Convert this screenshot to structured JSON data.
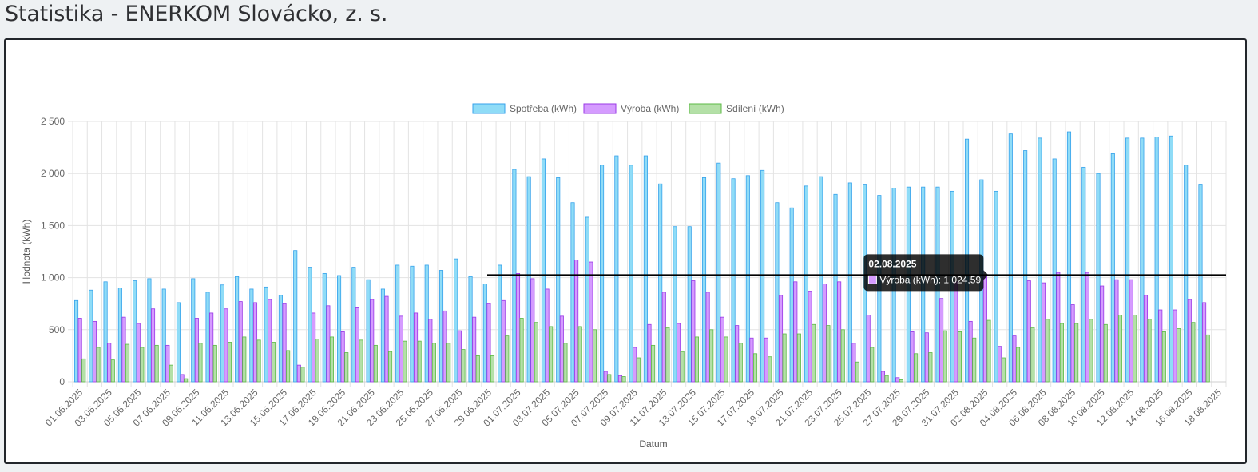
{
  "page": {
    "title": "Statistika - ENERKOM Slovácko, z. s."
  },
  "chart_data": {
    "type": "bar",
    "xlabel": "Datum",
    "ylabel": "Hodnota (kWh)",
    "ylim": [
      0,
      2500
    ],
    "yticks": [
      {
        "value": 0,
        "label": "0"
      },
      {
        "value": 500,
        "label": "500"
      },
      {
        "value": 1000,
        "label": "1 000"
      },
      {
        "value": 1500,
        "label": "1 500"
      },
      {
        "value": 2000,
        "label": "2 000"
      },
      {
        "value": 2500,
        "label": "2 500"
      }
    ],
    "grid": true,
    "legend_position": "top",
    "categories": [
      "01.06.2025",
      "02.06.2025",
      "03.06.2025",
      "04.06.2025",
      "05.06.2025",
      "06.06.2025",
      "07.06.2025",
      "08.06.2025",
      "09.06.2025",
      "10.06.2025",
      "11.06.2025",
      "12.06.2025",
      "13.06.2025",
      "14.06.2025",
      "15.06.2025",
      "16.06.2025",
      "17.06.2025",
      "18.06.2025",
      "19.06.2025",
      "20.06.2025",
      "21.06.2025",
      "22.06.2025",
      "23.06.2025",
      "24.06.2025",
      "25.06.2025",
      "26.06.2025",
      "27.06.2025",
      "28.06.2025",
      "29.06.2025",
      "30.06.2025",
      "01.07.2025",
      "02.07.2025",
      "03.07.2025",
      "04.07.2025",
      "05.07.2025",
      "06.07.2025",
      "07.07.2025",
      "08.07.2025",
      "09.07.2025",
      "10.07.2025",
      "11.07.2025",
      "12.07.2025",
      "13.07.2025",
      "14.07.2025",
      "15.07.2025",
      "16.07.2025",
      "17.07.2025",
      "18.07.2025",
      "19.07.2025",
      "20.07.2025",
      "21.07.2025",
      "22.07.2025",
      "23.07.2025",
      "24.07.2025",
      "25.07.2025",
      "26.07.2025",
      "27.07.2025",
      "28.07.2025",
      "29.07.2025",
      "30.07.2025",
      "31.07.2025",
      "01.08.2025",
      "02.08.2025",
      "03.08.2025",
      "04.08.2025",
      "05.08.2025",
      "06.08.2025",
      "07.08.2025",
      "08.08.2025",
      "09.08.2025",
      "10.08.2025",
      "11.08.2025",
      "12.08.2025",
      "13.08.2025",
      "14.08.2025",
      "15.08.2025",
      "16.08.2025",
      "17.08.2025",
      "18.08.2025"
    ],
    "tick_labels": [
      "01.06.2025",
      "03.06.2025",
      "05.06.2025",
      "07.06.2025",
      "09.06.2025",
      "11.06.2025",
      "13.06.2025",
      "15.06.2025",
      "17.06.2025",
      "19.06.2025",
      "21.06.2025",
      "23.06.2025",
      "25.06.2025",
      "27.06.2025",
      "29.06.2025",
      "01.07.2025",
      "03.07.2025",
      "05.07.2025",
      "07.07.2025",
      "09.07.2025",
      "11.07.2025",
      "13.07.2025",
      "15.07.2025",
      "17.07.2025",
      "19.07.2025",
      "21.07.2025",
      "23.07.2025",
      "25.07.2025",
      "27.07.2025",
      "29.07.2025",
      "31.07.2025",
      "02.08.2025",
      "04.08.2025",
      "06.08.2025",
      "08.08.2025",
      "10.08.2025",
      "12.08.2025",
      "14.08.2025",
      "16.08.2025",
      "18.08.2025"
    ],
    "series": [
      {
        "name": "Spotřeba (kWh)",
        "color": "#8fdcf7",
        "border": "#36a2eb",
        "values": [
          780,
          880,
          960,
          900,
          970,
          990,
          890,
          760,
          990,
          860,
          930,
          1010,
          890,
          910,
          830,
          1260,
          1100,
          1040,
          1020,
          1100,
          980,
          890,
          1120,
          1110,
          1120,
          1070,
          1180,
          1010,
          940,
          1120,
          2040,
          1970,
          2140,
          1960,
          1720,
          1580,
          2080,
          2170,
          2080,
          2170,
          1900,
          1490,
          1490,
          1960,
          2100,
          1950,
          1980,
          2030,
          1720,
          1670,
          1880,
          1970,
          1800,
          1910,
          1890,
          1790,
          1860,
          1870,
          1870,
          1870,
          1830,
          2330,
          1940,
          1830,
          2380,
          2220,
          2340,
          2140,
          2400,
          2060,
          2000,
          2190,
          2340,
          2340,
          2350,
          2360,
          2080,
          1890,
          null
        ]
      },
      {
        "name": "Výroba (kWh)",
        "color": "#d59bff",
        "border": "#9a38e6",
        "values": [
          610,
          580,
          370,
          620,
          560,
          700,
          350,
          70,
          610,
          660,
          700,
          770,
          760,
          790,
          750,
          160,
          660,
          730,
          480,
          710,
          790,
          820,
          630,
          660,
          600,
          680,
          490,
          620,
          750,
          780,
          1040,
          990,
          890,
          630,
          1170,
          1150,
          100,
          60,
          330,
          550,
          860,
          560,
          970,
          860,
          620,
          540,
          420,
          420,
          830,
          960,
          870,
          940,
          960,
          370,
          640,
          100,
          40,
          480,
          470,
          800,
          960,
          580,
          1025,
          340,
          440,
          970,
          950,
          1050,
          740,
          1050,
          920,
          980,
          980,
          830,
          690,
          690,
          790,
          760,
          null
        ]
      },
      {
        "name": "Sdílení (kWh)",
        "color": "#b4e0a7",
        "border": "#5cba45",
        "values": [
          220,
          330,
          210,
          360,
          330,
          350,
          160,
          30,
          370,
          350,
          380,
          430,
          400,
          380,
          300,
          140,
          410,
          430,
          280,
          400,
          350,
          290,
          390,
          390,
          370,
          370,
          310,
          250,
          250,
          440,
          610,
          570,
          530,
          370,
          530,
          500,
          70,
          50,
          230,
          350,
          520,
          290,
          430,
          500,
          430,
          370,
          270,
          240,
          460,
          460,
          550,
          540,
          500,
          190,
          330,
          60,
          20,
          270,
          280,
          490,
          480,
          420,
          590,
          230,
          330,
          520,
          600,
          560,
          560,
          600,
          550,
          640,
          640,
          600,
          480,
          510,
          570,
          450,
          null
        ]
      }
    ],
    "tooltip": {
      "title": "02.08.2025",
      "body": "Výroba (kWh): 1 024,59",
      "category_index": 62,
      "series_index": 1
    }
  }
}
